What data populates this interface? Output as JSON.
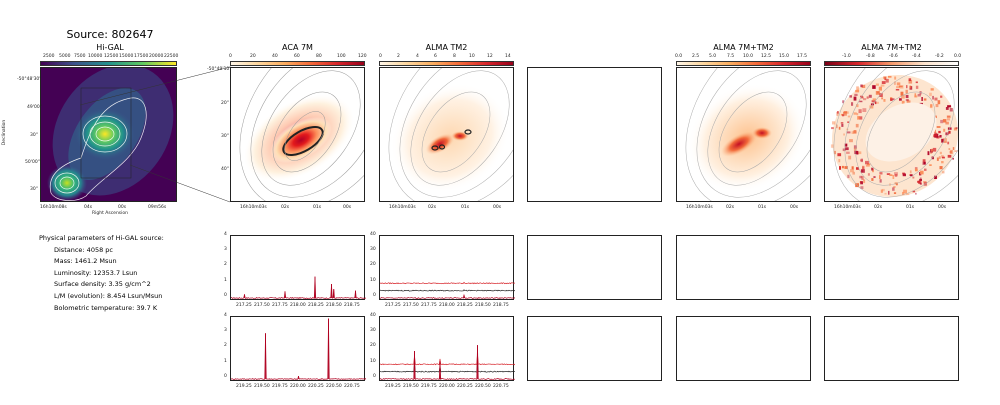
{
  "figure_title": "Source: 802647",
  "panels": {
    "higal": {
      "title": "Hi-GAL",
      "ylabel": "Declination",
      "xlabel": "Right Ascension",
      "yticks": [
        "-50°48'30\"",
        "49'00\"",
        "30\"",
        "50'00\"",
        "30\""
      ],
      "xticks": [
        "16h10m08s",
        "04s",
        "00s",
        "09m56s"
      ],
      "cbar_ticks": [
        "2500",
        "5000",
        "7500",
        "10000",
        "12500",
        "15000",
        "17500",
        "20000",
        "22500"
      ]
    },
    "aca": {
      "title": "ACA 7M",
      "yticks": [
        "-50°49'10\"",
        "20\"",
        "30\"",
        "40\""
      ],
      "xticks": [
        "16h10m03s",
        "02s",
        "01s",
        "00s"
      ],
      "cbar_ticks": [
        "0",
        "20",
        "40",
        "60",
        "80",
        "100",
        "120"
      ]
    },
    "tm2": {
      "title": "ALMA TM2",
      "xticks": [
        "16h10m03s",
        "02s",
        "01s",
        "00s"
      ],
      "cbar_ticks": [
        "0",
        "2",
        "4",
        "6",
        "8",
        "10",
        "12",
        "14"
      ]
    },
    "combo": {
      "title": "ALMA 7M+TM2",
      "xticks": [
        "16h10m03s",
        "02s",
        "01s",
        "00s"
      ],
      "cbar_ticks": [
        "0.0",
        "2.5",
        "5.0",
        "7.5",
        "10.0",
        "12.5",
        "15.0",
        "17.5"
      ]
    },
    "ratio": {
      "title": "ALMA 7M+TM2",
      "xticks": [
        "16h10m03s",
        "02s",
        "01s",
        "00s"
      ],
      "cbar_ticks": [
        "-1.0",
        "-0.8",
        "-0.6",
        "-0.4",
        "-0.2",
        "0.0"
      ]
    }
  },
  "physical_parameters": {
    "heading": "Physical parameters of Hi-GAL source:",
    "distance": "Distance: 4058 pc",
    "mass": "Mass: 1461.2 Msun",
    "luminosity": "Luminosity: 12353.7 Lsun",
    "surface_density": "Surface density: 3.35 g/cm^2",
    "lm": "L/M (evolution): 8.454 Lsun/Msun",
    "tbol": "Bolometric temperature: 39.7 K"
  },
  "spectra_axes": {
    "row1_xticks": [
      "217.25",
      "217.50",
      "217.75",
      "218.00",
      "218.25",
      "218.50",
      "218.75"
    ],
    "row2_xticks": [
      "219.25",
      "219.50",
      "219.75",
      "220.00",
      "220.25",
      "220.50",
      "220.75"
    ],
    "aca_yticks": [
      "0",
      "1",
      "2",
      "3",
      "4"
    ],
    "tm2_yticks": [
      "0",
      "10",
      "20",
      "30",
      "40"
    ]
  },
  "chart_data": [
    {
      "type": "line",
      "panel": "ACA 7M spectrum, lower sideband",
      "x_range": [
        217.1,
        218.9
      ],
      "ylim": [
        0,
        4
      ],
      "lines": [
        {
          "x": 217.28,
          "y": 0.25
        },
        {
          "x": 217.82,
          "y": 0.45
        },
        {
          "x": 218.22,
          "y": 1.45
        },
        {
          "x": 218.44,
          "y": 0.95
        },
        {
          "x": 218.47,
          "y": 0.6
        },
        {
          "x": 218.76,
          "y": 0.5
        }
      ]
    },
    {
      "type": "line",
      "panel": "ACA 7M spectrum, upper sideband",
      "x_range": [
        219.1,
        220.9
      ],
      "ylim": [
        0,
        4
      ],
      "lines": [
        {
          "x": 219.56,
          "y": 3.1
        },
        {
          "x": 220.4,
          "y": 4.1
        },
        {
          "x": 220.0,
          "y": 0.2
        }
      ]
    },
    {
      "type": "line",
      "panel": "ALMA TM2 spectra, lower sideband",
      "x_range": [
        217.1,
        218.9
      ],
      "ylim": [
        0,
        40
      ],
      "offsets": [
        10,
        5,
        0
      ],
      "lines": [
        {
          "x": 218.22,
          "y": 2
        }
      ]
    },
    {
      "type": "line",
      "panel": "ALMA TM2 spectra, upper sideband",
      "x_range": [
        219.1,
        220.9
      ],
      "ylim": [
        0,
        40
      ],
      "offsets": [
        10,
        5,
        0
      ],
      "lines": [
        {
          "x": 219.56,
          "y": 19
        },
        {
          "x": 219.9,
          "y": 12
        },
        {
          "x": 220.4,
          "y": 23
        }
      ]
    }
  ]
}
